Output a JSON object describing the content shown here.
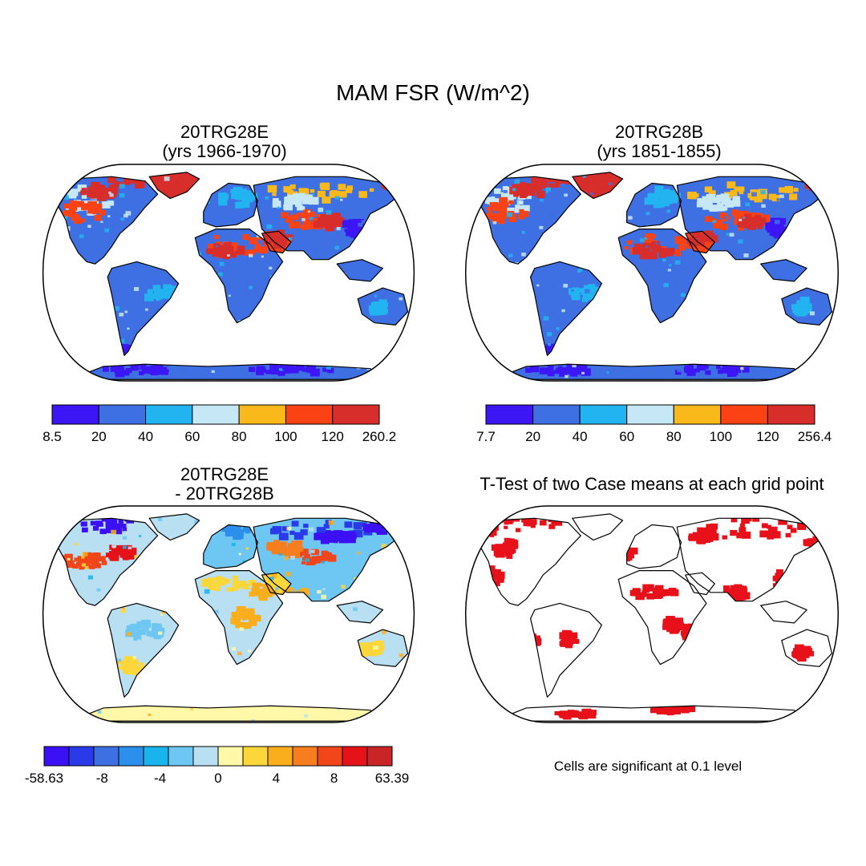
{
  "figure": {
    "title": "MAM FSR (W/m^2)"
  },
  "panels": [
    {
      "id": "case-e",
      "title_line1": "20TRG28E",
      "title_line2": "(yrs 1966-1970)",
      "colorbar": {
        "colors": [
          "#3c16f5",
          "#3e6fe3",
          "#22b4f0",
          "#c6e8f6",
          "#f9b91b",
          "#fb4214",
          "#d72d2b"
        ],
        "labels": [
          "8.5",
          "20",
          "40",
          "60",
          "80",
          "100",
          "120",
          "260.2"
        ]
      }
    },
    {
      "id": "case-b",
      "title_line1": "20TRG28B",
      "title_line2": "(yrs 1851-1855)",
      "colorbar": {
        "colors": [
          "#3c16f5",
          "#3e6fe3",
          "#22b4f0",
          "#c6e8f6",
          "#f9b91b",
          "#fb4214",
          "#d72d2b"
        ],
        "labels": [
          "7.7",
          "20",
          "40",
          "60",
          "80",
          "100",
          "120",
          "256.4"
        ]
      }
    },
    {
      "id": "difference",
      "title_line1": "20TRG28E",
      "title_line2": "- 20TRG28B",
      "colorbar": {
        "colors": [
          "#3c10f5",
          "#2a3ae8",
          "#3e6fe3",
          "#2d8fec",
          "#19b4ee",
          "#6ec6f2",
          "#b9dff3",
          "#fff8a8",
          "#fdd63a",
          "#fbae1c",
          "#f77e1e",
          "#f2461a",
          "#e5121a",
          "#c92426"
        ],
        "labels": [
          "-58.63",
          "-8",
          "-4",
          "0",
          "4",
          "8",
          "63.39"
        ]
      }
    },
    {
      "id": "ttest",
      "title_line1": "T-Test of two Case means at each grid point",
      "note": "Cells are significant at 0.1 level",
      "significant_color": "#e8111a"
    }
  ]
}
